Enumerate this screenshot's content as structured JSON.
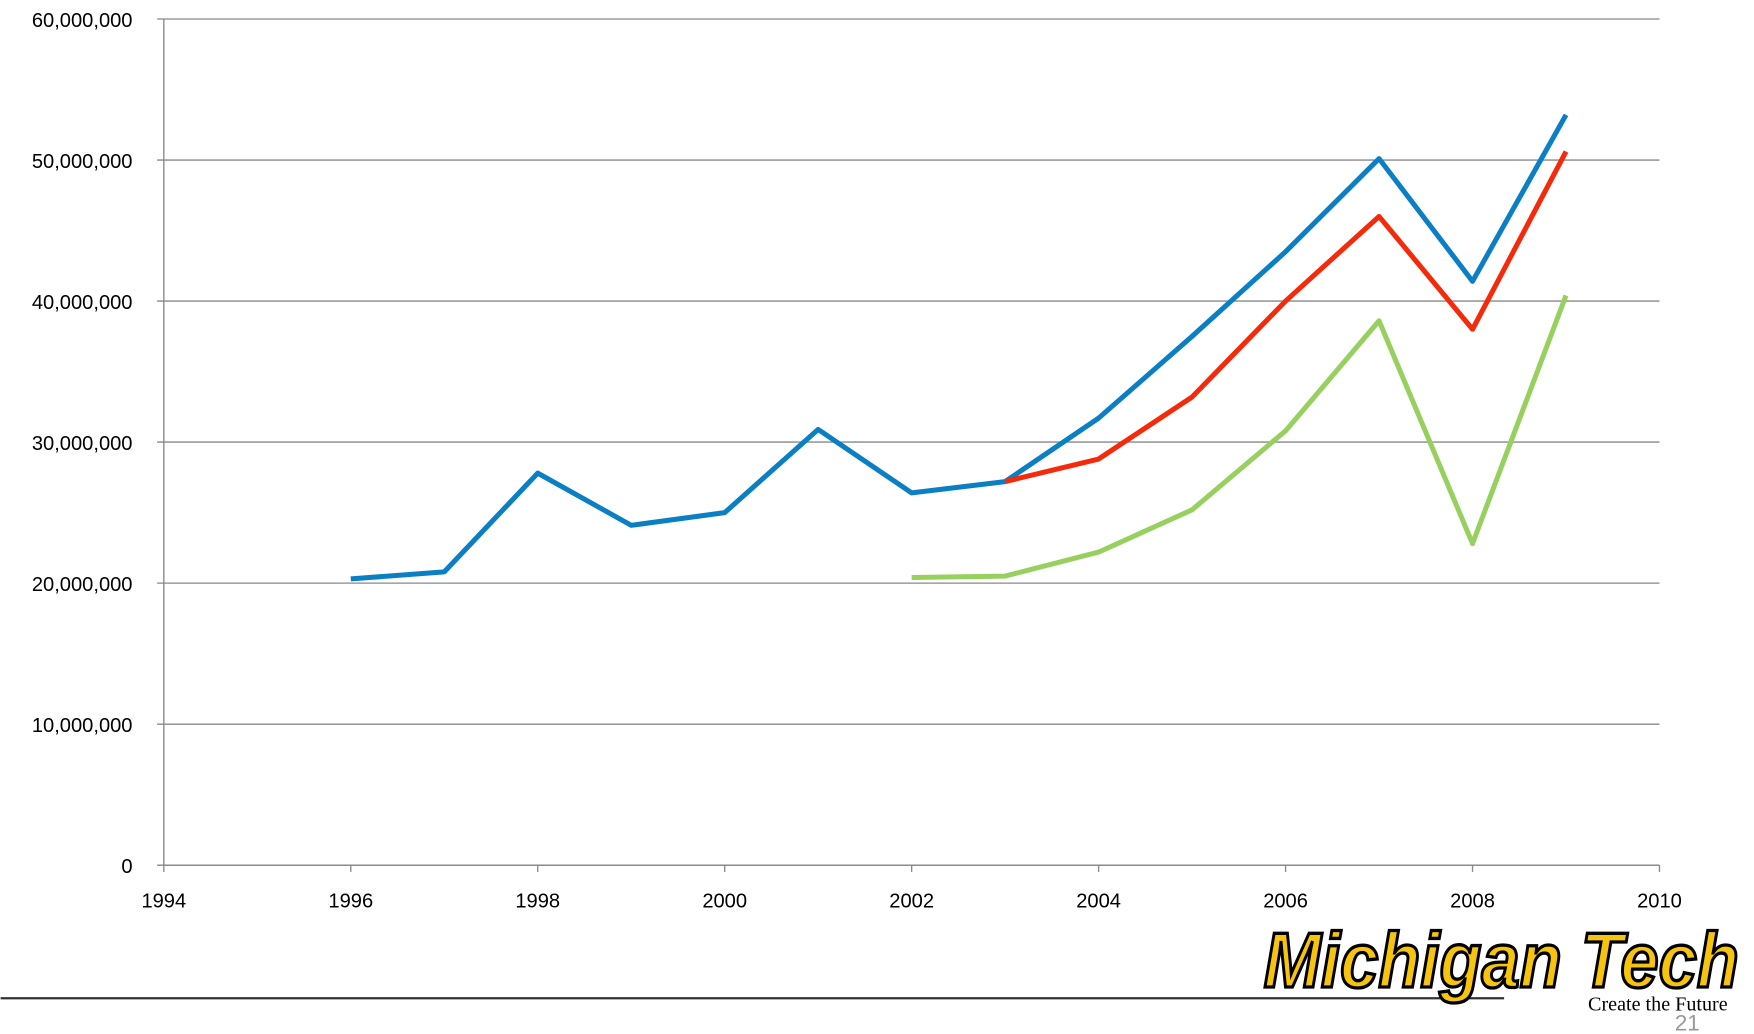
{
  "chart_data": {
    "type": "line",
    "x": [
      1996,
      1997,
      1998,
      1999,
      2000,
      2001,
      2002,
      2003,
      2004,
      2005,
      2006,
      2007,
      2008,
      2009
    ],
    "series": [
      {
        "color": "#0a7fc4",
        "values": [
          20300000,
          20800000,
          27800000,
          24100000,
          25000000,
          30900000,
          26400000,
          27200000,
          31700000,
          37500000,
          43500000,
          50100000,
          41400000,
          53200000
        ]
      },
      {
        "color": "#f52a0a",
        "values": [
          null,
          null,
          null,
          null,
          null,
          null,
          null,
          27200000,
          28800000,
          33200000,
          40000000,
          46000000,
          38000000,
          50600000
        ]
      },
      {
        "color": "#98d060",
        "values": [
          null,
          null,
          null,
          null,
          null,
          null,
          20400000,
          20500000,
          22200000,
          25200000,
          30800000,
          38600000,
          22800000,
          40400000
        ]
      }
    ],
    "xlim": [
      1994,
      2010
    ],
    "xticks": [
      1994,
      1996,
      1998,
      2000,
      2002,
      2004,
      2006,
      2008,
      2010
    ],
    "ylim": [
      0,
      60000000
    ],
    "yticks": [
      0,
      {
        "value": 10000000,
        "label": "10,000,000"
      },
      {
        "value": 20000000,
        "label": "20,000,000"
      },
      {
        "value": 30000000,
        "label": "30,000,000"
      },
      {
        "value": 40000000,
        "label": "40,000,000"
      },
      {
        "value": 50000000,
        "label": "50,000,000"
      },
      {
        "value": 60000000,
        "label": "60,000,000"
      }
    ],
    "grid": true
  },
  "logo": {
    "name": "Michigan Tech",
    "tagline": "Create the Future"
  },
  "page_number": 21
}
